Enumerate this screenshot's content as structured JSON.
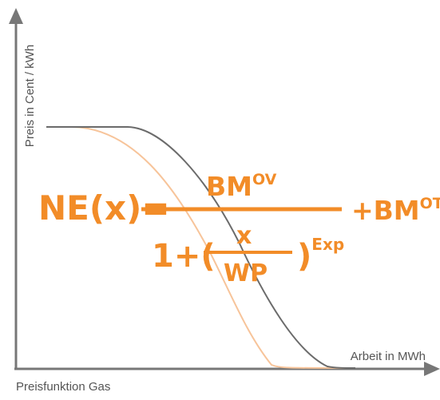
{
  "chart_data": {
    "type": "line",
    "xlabel": "Arbeit in MWh",
    "ylabel": "Preis in Cent / kWh",
    "grid": false,
    "legend": "none",
    "series": [
      {
        "color": "#f7c49a"
      },
      {
        "color": "#6b6b6b"
      }
    ]
  },
  "formula": {
    "lhs": "NE(x)=",
    "numerator": "BM",
    "numerator_sup": "OV",
    "denominator_prefix": "1+(",
    "inner_numerator": "x",
    "inner_denominator": "WP",
    "denominator_suffix": ")",
    "exponent": "Exp",
    "rhs_plus": "+BM",
    "rhs_sup": "OT",
    "color": "#f28c28"
  },
  "caption": "Preisfunktion Gas",
  "colors": {
    "axis": "#777777",
    "text": "#555555"
  }
}
